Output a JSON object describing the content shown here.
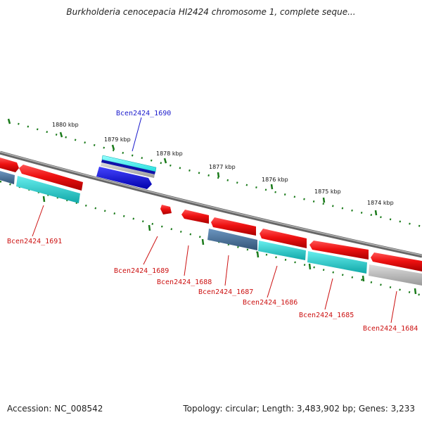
{
  "title": "Burkholderia cenocepacia HI2424 chromosome 1, complete seque...",
  "footer": {
    "accession": "Accession: NC_008542",
    "topology": "Topology: circular; Length: 3,483,902 bp; Genes: 3,233"
  },
  "scale": {
    "labels": [
      "1880 kbp",
      "1879 kbp",
      "1878 kbp",
      "1877 kbp",
      "1876 kbp",
      "1875 kbp",
      "1874 kbp"
    ],
    "tick_color": "#1a7a1a"
  },
  "colors": {
    "backbone": "#888888",
    "forward_gene": "#ee1111",
    "forward_gene_dark": "#1111dd",
    "reverse_gene_cyan": "#11cccc",
    "reverse_gene_blue": "#4477aa",
    "reverse_gene_gray": "#bbbbbb",
    "label_forward": "#1a1acc",
    "label_reverse": "#cc1111"
  },
  "gene_labels": [
    {
      "text": "Bcen2424_1690",
      "strand": "forward"
    },
    {
      "text": "Bcen2424_1691",
      "strand": "reverse"
    },
    {
      "text": "Bcen2424_1689",
      "strand": "reverse"
    },
    {
      "text": "Bcen2424_1688",
      "strand": "reverse"
    },
    {
      "text": "Bcen2424_1687",
      "strand": "reverse"
    },
    {
      "text": "Bcen2424_1686",
      "strand": "reverse"
    },
    {
      "text": "Bcen2424_1685",
      "strand": "reverse"
    },
    {
      "text": "Bcen2424_1684",
      "strand": "reverse"
    }
  ]
}
